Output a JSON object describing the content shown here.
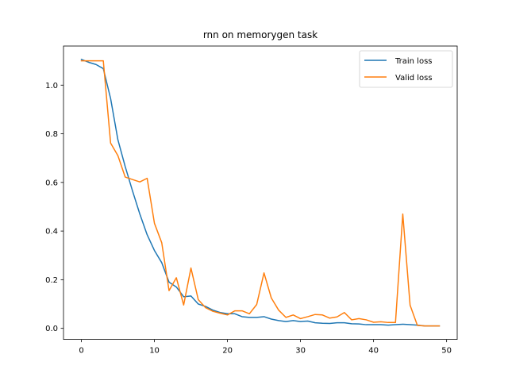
{
  "chart_data": {
    "type": "line",
    "title": "rnn on memorygen task",
    "xlabel": "",
    "ylabel": "",
    "xlim": [
      -2.45,
      51.45
    ],
    "ylim": [
      -0.0455,
      1.1608
    ],
    "xticks": [
      0,
      10,
      20,
      30,
      40,
      50
    ],
    "yticks": [
      0.0,
      0.2,
      0.4,
      0.6,
      0.8,
      1.0
    ],
    "xtick_labels": [
      "0",
      "10",
      "20",
      "30",
      "40",
      "50"
    ],
    "ytick_labels": [
      "0.0",
      "0.2",
      "0.4",
      "0.6",
      "0.8",
      "1.0"
    ],
    "grid": false,
    "legend_position": "top-right",
    "x": [
      0,
      1,
      2,
      3,
      4,
      5,
      6,
      7,
      8,
      9,
      10,
      11,
      12,
      13,
      14,
      15,
      16,
      17,
      18,
      19,
      20,
      21,
      22,
      23,
      24,
      25,
      26,
      27,
      28,
      29,
      30,
      31,
      32,
      33,
      34,
      35,
      36,
      37,
      38,
      39,
      40,
      41,
      42,
      43,
      44,
      45,
      46,
      47,
      48,
      49
    ],
    "series": [
      {
        "name": "Train loss",
        "color": "#1f77b4",
        "values": [
          1.106,
          1.094,
          1.085,
          1.068,
          0.945,
          0.775,
          0.665,
          0.565,
          0.47,
          0.385,
          0.32,
          0.27,
          0.19,
          0.17,
          0.13,
          0.133,
          0.1,
          0.09,
          0.075,
          0.065,
          0.06,
          0.06,
          0.048,
          0.045,
          0.045,
          0.048,
          0.038,
          0.032,
          0.028,
          0.032,
          0.028,
          0.03,
          0.023,
          0.021,
          0.02,
          0.023,
          0.023,
          0.019,
          0.018,
          0.015,
          0.015,
          0.015,
          0.013,
          0.015,
          0.017,
          0.015,
          0.013,
          0.01,
          0.01,
          0.01
        ]
      },
      {
        "name": "Valid loss",
        "color": "#ff7f0e",
        "values": [
          1.1,
          1.1,
          1.1,
          1.1,
          0.762,
          0.71,
          0.622,
          0.612,
          0.602,
          0.617,
          0.432,
          0.352,
          0.155,
          0.208,
          0.096,
          0.248,
          0.118,
          0.085,
          0.07,
          0.062,
          0.055,
          0.072,
          0.072,
          0.06,
          0.098,
          0.228,
          0.125,
          0.075,
          0.045,
          0.055,
          0.04,
          0.048,
          0.057,
          0.055,
          0.042,
          0.047,
          0.065,
          0.035,
          0.04,
          0.035,
          0.025,
          0.027,
          0.024,
          0.024,
          0.47,
          0.095,
          0.012,
          0.01,
          0.01,
          0.01
        ]
      }
    ]
  }
}
